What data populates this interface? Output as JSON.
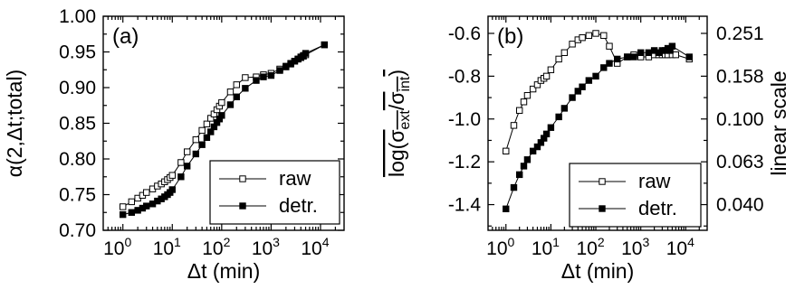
{
  "chart_data": [
    {
      "type": "line",
      "panel_label": "(a)",
      "xlabel": "Δt (min)",
      "ylabel": "α(2,Δt;total)",
      "xscale": "log",
      "xlim": [
        0.4,
        30000
      ],
      "ylim": [
        0.7,
        1.0
      ],
      "x_ticks": [
        1,
        10,
        100,
        1000,
        10000
      ],
      "x_tick_labels": [
        {
          "base": "10",
          "exp": "0"
        },
        {
          "base": "10",
          "exp": "1"
        },
        {
          "base": "10",
          "exp": "2"
        },
        {
          "base": "10",
          "exp": "3"
        },
        {
          "base": "10",
          "exp": "4"
        }
      ],
      "y_ticks": [
        "0.70",
        "0.75",
        "0.80",
        "0.85",
        "0.90",
        "0.95",
        "1.00"
      ],
      "grid": false,
      "legend_position": "bottom-right",
      "series": [
        {
          "name": "raw",
          "marker": "open-square",
          "x": [
            1,
            1.5,
            2,
            2.5,
            3,
            4,
            5,
            6,
            7,
            8,
            9,
            10,
            15,
            20,
            30,
            40,
            50,
            60,
            70,
            80,
            90,
            100,
            150,
            200,
            300,
            500,
            700,
            1000,
            1500,
            2000,
            2500,
            3000,
            3500,
            4000,
            4500,
            5000,
            12000
          ],
          "y": [
            0.733,
            0.74,
            0.745,
            0.749,
            0.753,
            0.758,
            0.762,
            0.765,
            0.768,
            0.771,
            0.774,
            0.777,
            0.795,
            0.81,
            0.827,
            0.84,
            0.849,
            0.857,
            0.863,
            0.869,
            0.874,
            0.879,
            0.894,
            0.904,
            0.914,
            0.915,
            0.918,
            0.92,
            0.926,
            0.93,
            0.934,
            0.937,
            0.94,
            0.942,
            0.944,
            0.946,
            0.96
          ]
        },
        {
          "name": "detr.",
          "marker": "filled-square",
          "x": [
            1,
            1.5,
            2,
            2.5,
            3,
            4,
            5,
            6,
            7,
            8,
            9,
            10,
            15,
            20,
            30,
            40,
            50,
            60,
            70,
            80,
            90,
            100,
            150,
            200,
            300,
            500,
            700,
            1000,
            1500,
            2000,
            2500,
            3000,
            3500,
            4000,
            4500,
            5000,
            12000
          ],
          "y": [
            0.722,
            0.725,
            0.728,
            0.731,
            0.734,
            0.737,
            0.741,
            0.744,
            0.747,
            0.75,
            0.753,
            0.757,
            0.775,
            0.79,
            0.807,
            0.82,
            0.83,
            0.838,
            0.845,
            0.851,
            0.856,
            0.861,
            0.876,
            0.887,
            0.899,
            0.91,
            0.915,
            0.917,
            0.924,
            0.929,
            0.933,
            0.937,
            0.94,
            0.943,
            0.945,
            0.948,
            0.96
          ]
        }
      ]
    },
    {
      "type": "line",
      "panel_label": "(b)",
      "xlabel": "Δt (min)",
      "ylabel": {
        "base": "log(σ",
        "sub1": "ext",
        "mid": "/σ",
        "sub2": "int",
        "end": ")"
      },
      "y2label": "linear scale",
      "xscale": "log",
      "xlim": [
        0.4,
        30000
      ],
      "ylim": [
        -1.52,
        -0.52
      ],
      "x_ticks": [
        1,
        10,
        100,
        1000,
        10000
      ],
      "x_tick_labels": [
        {
          "base": "10",
          "exp": "0"
        },
        {
          "base": "10",
          "exp": "1"
        },
        {
          "base": "10",
          "exp": "2"
        },
        {
          "base": "10",
          "exp": "3"
        },
        {
          "base": "10",
          "exp": "4"
        }
      ],
      "y_ticks": [
        {
          "value": -0.6,
          "label": "-0.6"
        },
        {
          "value": -0.8,
          "label": "-0.8"
        },
        {
          "value": -1.0,
          "label": "-1.0"
        },
        {
          "value": -1.2,
          "label": "-1.2"
        },
        {
          "value": -1.4,
          "label": "-1.4"
        }
      ],
      "y2_ticks": [
        "0.251",
        "0.158",
        "0.100",
        "0.063",
        "0.040"
      ],
      "grid": false,
      "legend_position": "bottom-right",
      "series": [
        {
          "name": "raw",
          "marker": "open-square",
          "x": [
            1,
            1.5,
            2,
            2.5,
            3,
            4,
            5,
            6,
            7,
            8,
            10,
            15,
            20,
            30,
            40,
            50,
            70,
            100,
            150,
            200,
            300,
            500,
            700,
            1000,
            1500,
            2000,
            2500,
            3000,
            3500,
            4000,
            5000,
            6000,
            12000
          ],
          "y": [
            -1.15,
            -1.03,
            -0.96,
            -0.92,
            -0.89,
            -0.86,
            -0.84,
            -0.82,
            -0.81,
            -0.8,
            -0.77,
            -0.72,
            -0.69,
            -0.65,
            -0.63,
            -0.62,
            -0.61,
            -0.6,
            -0.61,
            -0.66,
            -0.74,
            -0.71,
            -0.7,
            -0.71,
            -0.71,
            -0.7,
            -0.7,
            -0.7,
            -0.7,
            -0.7,
            -0.7,
            -0.7,
            -0.72
          ]
        },
        {
          "name": "detr.",
          "marker": "filled-square",
          "x": [
            1,
            1.5,
            2,
            2.5,
            3,
            4,
            5,
            6,
            7,
            8,
            10,
            15,
            20,
            30,
            40,
            50,
            70,
            100,
            150,
            200,
            300,
            500,
            700,
            1000,
            1500,
            2000,
            2500,
            3000,
            3500,
            4000,
            4500,
            5000,
            12000
          ],
          "y": [
            -1.42,
            -1.32,
            -1.26,
            -1.22,
            -1.19,
            -1.15,
            -1.13,
            -1.11,
            -1.09,
            -1.07,
            -1.04,
            -0.99,
            -0.95,
            -0.9,
            -0.87,
            -0.85,
            -0.82,
            -0.8,
            -0.76,
            -0.74,
            -0.72,
            -0.71,
            -0.71,
            -0.69,
            -0.69,
            -0.68,
            -0.69,
            -0.68,
            -0.68,
            -0.67,
            -0.68,
            -0.66,
            -0.71
          ]
        }
      ]
    }
  ]
}
